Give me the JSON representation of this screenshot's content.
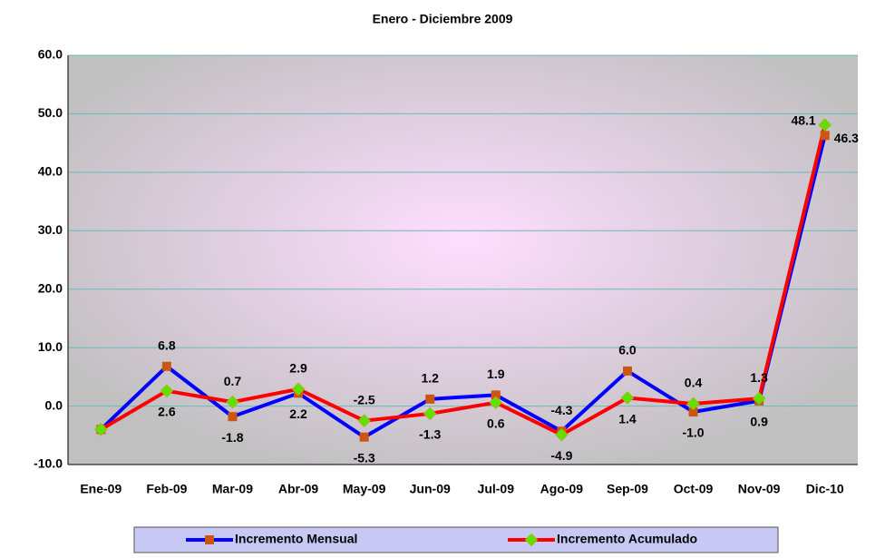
{
  "chart_data": {
    "type": "line",
    "title": "Enero - Diciembre 2009",
    "categories": [
      "Ene-09",
      "Feb-09",
      "Mar-09",
      "Abr-09",
      "May-09",
      "Jun-09",
      "Jul-09",
      "Ago-09",
      "Sep-09",
      "Oct-09",
      "Nov-09",
      "Dic-10"
    ],
    "series": [
      {
        "name": "Incremento Mensual",
        "color": "#0000ff",
        "marker_color": "#cc5511",
        "values": [
          -4.0,
          6.8,
          -1.8,
          2.2,
          -5.3,
          1.2,
          1.9,
          -4.3,
          6.0,
          -1.0,
          0.9,
          46.3
        ],
        "value_labels": [
          null,
          "6.8",
          "-1.8",
          "2.2",
          "-5.3",
          "1.2",
          "1.9",
          "-4.3",
          "6.0",
          "-1.0",
          "0.9",
          "46.3"
        ]
      },
      {
        "name": "Incremento Acumulado",
        "color": "#ff0000",
        "marker_color": "#66dd00",
        "values": [
          -4.0,
          2.6,
          0.7,
          2.9,
          -2.5,
          -1.3,
          0.6,
          -4.9,
          1.4,
          0.4,
          1.3,
          48.1
        ],
        "value_labels": [
          null,
          "2.6",
          "0.7",
          "2.9",
          "-2.5",
          "-1.3",
          "0.6",
          "-4.9",
          "1.4",
          "0.4",
          "1.3",
          "48.1"
        ]
      }
    ],
    "ylim": [
      -10,
      60
    ],
    "yticks": [
      {
        "value": -10,
        "label": "-10.0"
      },
      {
        "value": 0,
        "label": "0.0"
      },
      {
        "value": 10,
        "label": "10.0"
      },
      {
        "value": 20,
        "label": "20.0"
      },
      {
        "value": 30,
        "label": "30.0"
      },
      {
        "value": 40,
        "label": "40.0"
      },
      {
        "value": 50,
        "label": "50.0"
      },
      {
        "value": 60,
        "label": "60.0"
      }
    ],
    "grid": true,
    "legend": "bottom"
  }
}
